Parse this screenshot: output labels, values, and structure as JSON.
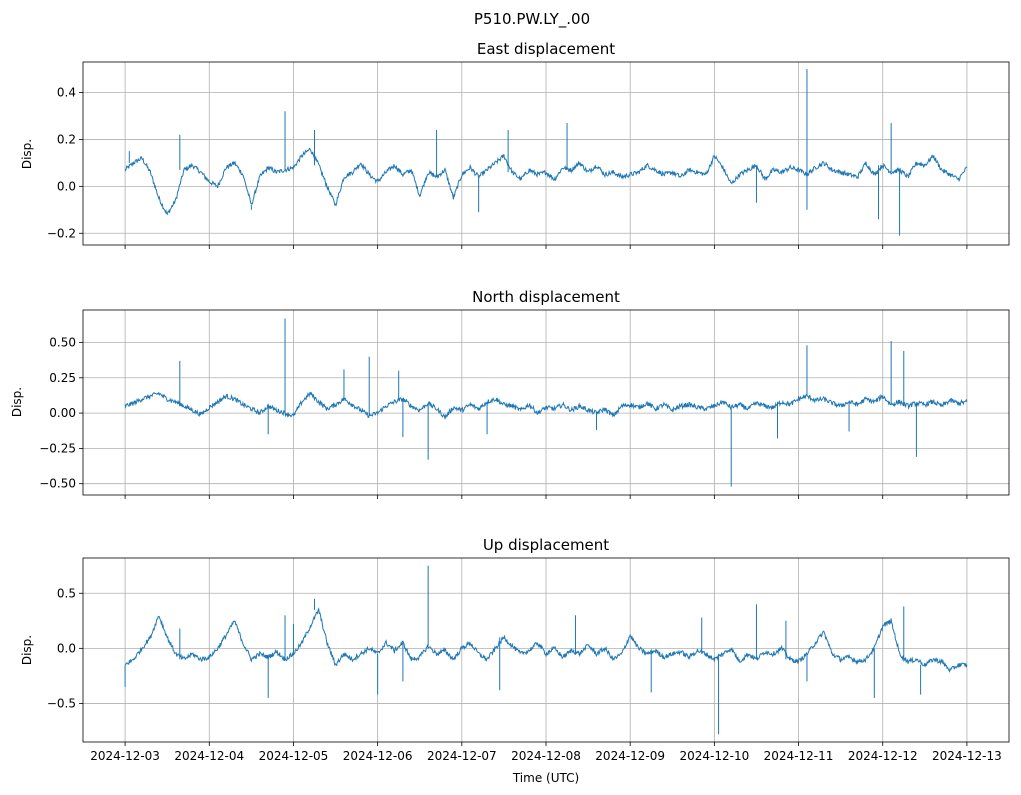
{
  "suptitle": "P510.PW.LY_.00",
  "chart_data": [
    {
      "type": "line",
      "title": "East displacement",
      "xlabel": "",
      "ylabel": "Disp.",
      "xlim": [
        -0.5,
        10.5
      ],
      "ylim": [
        -0.25,
        0.53
      ],
      "yticks": [
        -0.2,
        0.0,
        0.2,
        0.4
      ],
      "ytick_labels": [
        "−0.2",
        "0.0",
        "0.2",
        "0.4"
      ],
      "grid": true,
      "series": [
        {
          "name": "East",
          "color": "#1f77b4",
          "x": [
            0,
            0.1,
            0.2,
            0.3,
            0.4,
            0.5,
            0.6,
            0.7,
            0.8,
            0.9,
            1.0,
            1.1,
            1.2,
            1.3,
            1.4,
            1.5,
            1.6,
            1.7,
            1.8,
            1.9,
            2.0,
            2.1,
            2.2,
            2.3,
            2.4,
            2.5,
            2.6,
            2.7,
            2.8,
            2.9,
            3.0,
            3.1,
            3.2,
            3.3,
            3.4,
            3.5,
            3.6,
            3.7,
            3.8,
            3.9,
            4.0,
            4.1,
            4.2,
            4.3,
            4.4,
            4.5,
            4.6,
            4.7,
            4.8,
            4.9,
            5.0,
            5.1,
            5.2,
            5.3,
            5.4,
            5.5,
            5.6,
            5.7,
            5.8,
            5.9,
            6.0,
            6.1,
            6.2,
            6.3,
            6.4,
            6.5,
            6.6,
            6.7,
            6.8,
            6.9,
            7.0,
            7.1,
            7.2,
            7.3,
            7.4,
            7.5,
            7.6,
            7.7,
            7.8,
            7.9,
            8.0,
            8.1,
            8.2,
            8.3,
            8.4,
            8.5,
            8.6,
            8.7,
            8.8,
            8.9,
            9.0,
            9.1,
            9.2,
            9.3,
            9.4,
            9.5,
            9.6,
            9.7,
            9.8,
            9.9,
            10.0
          ],
          "y": [
            0.07,
            0.1,
            0.12,
            0.06,
            -0.05,
            -0.12,
            -0.06,
            0.07,
            0.09,
            0.06,
            0.02,
            0.0,
            0.08,
            0.1,
            0.05,
            -0.08,
            0.04,
            0.08,
            0.06,
            0.07,
            0.08,
            0.13,
            0.16,
            0.09,
            0.0,
            -0.08,
            0.04,
            0.06,
            0.1,
            0.05,
            0.02,
            0.06,
            0.09,
            0.05,
            0.07,
            -0.04,
            0.06,
            0.04,
            0.07,
            -0.05,
            0.05,
            0.08,
            0.04,
            0.07,
            0.1,
            0.13,
            0.06,
            0.03,
            0.07,
            0.05,
            0.06,
            0.03,
            0.08,
            0.07,
            0.1,
            0.06,
            0.09,
            0.05,
            0.06,
            0.04,
            0.05,
            0.06,
            0.09,
            0.07,
            0.05,
            0.06,
            0.04,
            0.07,
            0.06,
            0.05,
            0.13,
            0.08,
            0.01,
            0.05,
            0.07,
            0.09,
            0.03,
            0.07,
            0.06,
            0.08,
            0.07,
            0.05,
            0.08,
            0.1,
            0.07,
            0.06,
            0.05,
            0.04,
            0.1,
            0.05,
            0.09,
            0.06,
            0.07,
            0.04,
            0.1,
            0.09,
            0.13,
            0.07,
            0.05,
            0.03,
            0.08
          ],
          "spikes": [
            [
              0.05,
              0.15
            ],
            [
              0.65,
              0.22
            ],
            [
              1.9,
              0.32
            ],
            [
              2.25,
              0.24
            ],
            [
              3.7,
              0.24
            ],
            [
              4.55,
              0.24
            ],
            [
              5.25,
              0.27
            ],
            [
              7.5,
              -0.07
            ],
            [
              8.1,
              0.5
            ],
            [
              8.1,
              -0.1
            ],
            [
              9.1,
              0.27
            ],
            [
              8.95,
              -0.14
            ],
            [
              9.2,
              -0.21
            ],
            [
              4.2,
              -0.11
            ],
            [
              1.5,
              -0.1
            ]
          ]
        }
      ]
    },
    {
      "type": "line",
      "title": "North displacement",
      "xlabel": "",
      "ylabel": "Disp.",
      "xlim": [
        -0.5,
        10.5
      ],
      "ylim": [
        -0.58,
        0.73
      ],
      "yticks": [
        -0.5,
        -0.25,
        0.0,
        0.25,
        0.5
      ],
      "ytick_labels": [
        "−0.50",
        "−0.25",
        "0.00",
        "0.25",
        "0.50"
      ],
      "grid": true,
      "series": [
        {
          "name": "North",
          "color": "#1f77b4",
          "x": [
            0,
            0.1,
            0.2,
            0.3,
            0.4,
            0.5,
            0.6,
            0.7,
            0.8,
            0.9,
            1.0,
            1.1,
            1.2,
            1.3,
            1.4,
            1.5,
            1.6,
            1.7,
            1.8,
            1.9,
            2.0,
            2.1,
            2.2,
            2.3,
            2.4,
            2.5,
            2.6,
            2.7,
            2.8,
            2.9,
            3.0,
            3.1,
            3.2,
            3.3,
            3.4,
            3.5,
            3.6,
            3.7,
            3.8,
            3.9,
            4.0,
            4.1,
            4.2,
            4.3,
            4.4,
            4.5,
            4.6,
            4.7,
            4.8,
            4.9,
            5.0,
            5.1,
            5.2,
            5.3,
            5.4,
            5.5,
            5.6,
            5.7,
            5.8,
            5.9,
            6.0,
            6.1,
            6.2,
            6.3,
            6.4,
            6.5,
            6.6,
            6.7,
            6.8,
            6.9,
            7.0,
            7.1,
            7.2,
            7.3,
            7.4,
            7.5,
            7.6,
            7.7,
            7.8,
            7.9,
            8.0,
            8.1,
            8.2,
            8.3,
            8.4,
            8.5,
            8.6,
            8.7,
            8.8,
            8.9,
            9.0,
            9.1,
            9.2,
            9.3,
            9.4,
            9.5,
            9.6,
            9.7,
            9.8,
            9.9,
            10.0
          ],
          "y": [
            0.05,
            0.07,
            0.1,
            0.12,
            0.14,
            0.1,
            0.08,
            0.05,
            0.02,
            -0.01,
            0.04,
            0.08,
            0.12,
            0.1,
            0.06,
            0.03,
            0.0,
            0.05,
            0.02,
            0.0,
            -0.02,
            0.08,
            0.14,
            0.08,
            0.03,
            0.06,
            0.1,
            0.06,
            0.02,
            -0.02,
            0.0,
            0.05,
            0.08,
            0.1,
            0.05,
            0.02,
            0.07,
            0.03,
            -0.03,
            0.04,
            0.02,
            0.06,
            0.03,
            0.08,
            0.1,
            0.06,
            0.05,
            0.02,
            0.06,
            0.0,
            0.04,
            0.03,
            0.06,
            0.02,
            0.05,
            0.02,
            0.0,
            0.03,
            -0.02,
            0.05,
            0.06,
            0.04,
            0.07,
            0.03,
            0.06,
            0.02,
            0.05,
            0.06,
            0.04,
            0.03,
            0.05,
            0.08,
            0.04,
            0.06,
            0.03,
            0.07,
            0.05,
            0.04,
            0.08,
            0.06,
            0.1,
            0.12,
            0.09,
            0.1,
            0.07,
            0.05,
            0.08,
            0.06,
            0.1,
            0.08,
            0.12,
            0.06,
            0.08,
            0.05,
            0.07,
            0.06,
            0.08,
            0.05,
            0.09,
            0.07,
            0.08
          ],
          "spikes": [
            [
              0.65,
              0.37
            ],
            [
              1.9,
              0.67
            ],
            [
              1.7,
              -0.15
            ],
            [
              2.6,
              0.31
            ],
            [
              2.9,
              0.4
            ],
            [
              3.25,
              0.3
            ],
            [
              3.6,
              -0.33
            ],
            [
              3.3,
              -0.17
            ],
            [
              4.3,
              -0.15
            ],
            [
              7.2,
              -0.52
            ],
            [
              7.75,
              -0.18
            ],
            [
              8.1,
              0.48
            ],
            [
              8.6,
              -0.13
            ],
            [
              9.1,
              0.51
            ],
            [
              9.25,
              0.44
            ],
            [
              9.4,
              -0.31
            ],
            [
              5.6,
              -0.12
            ]
          ]
        }
      ]
    },
    {
      "type": "line",
      "title": "Up displacement",
      "xlabel": "Time (UTC)",
      "ylabel": "Disp.",
      "xlim": [
        -0.5,
        10.5
      ],
      "ylim": [
        -0.85,
        0.82
      ],
      "yticks": [
        -0.5,
        0.0,
        0.5
      ],
      "ytick_labels": [
        "−0.5",
        "0.0",
        "0.5"
      ],
      "xtick_labels": [
        "2024-12-03",
        "2024-12-04",
        "2024-12-05",
        "2024-12-06",
        "2024-12-07",
        "2024-12-08",
        "2024-12-09",
        "2024-12-10",
        "2024-12-11",
        "2024-12-12",
        "2024-12-13"
      ],
      "grid": true,
      "series": [
        {
          "name": "Up",
          "color": "#1f77b4",
          "x": [
            0,
            0.1,
            0.2,
            0.3,
            0.4,
            0.5,
            0.6,
            0.7,
            0.8,
            0.9,
            1.0,
            1.1,
            1.2,
            1.3,
            1.4,
            1.5,
            1.6,
            1.7,
            1.8,
            1.9,
            2.0,
            2.1,
            2.2,
            2.3,
            2.4,
            2.5,
            2.6,
            2.7,
            2.8,
            2.9,
            3.0,
            3.1,
            3.2,
            3.3,
            3.4,
            3.5,
            3.6,
            3.7,
            3.8,
            3.9,
            4.0,
            4.1,
            4.2,
            4.3,
            4.4,
            4.5,
            4.6,
            4.7,
            4.8,
            4.9,
            5.0,
            5.1,
            5.2,
            5.3,
            5.4,
            5.5,
            5.6,
            5.7,
            5.8,
            5.9,
            6.0,
            6.1,
            6.2,
            6.3,
            6.4,
            6.5,
            6.6,
            6.7,
            6.8,
            6.9,
            7.0,
            7.1,
            7.2,
            7.3,
            7.4,
            7.5,
            7.6,
            7.7,
            7.8,
            7.9,
            8.0,
            8.1,
            8.2,
            8.3,
            8.4,
            8.5,
            8.6,
            8.7,
            8.8,
            8.9,
            9.0,
            9.1,
            9.2,
            9.3,
            9.4,
            9.5,
            9.6,
            9.7,
            9.8,
            9.9,
            10.0
          ],
          "y": [
            -0.15,
            -0.1,
            0.0,
            0.1,
            0.3,
            0.1,
            -0.05,
            -0.1,
            -0.05,
            -0.1,
            -0.08,
            0.0,
            0.12,
            0.25,
            0.05,
            -0.1,
            -0.05,
            -0.08,
            -0.03,
            -0.1,
            -0.05,
            0.05,
            0.2,
            0.35,
            0.05,
            -0.15,
            -0.05,
            -0.1,
            -0.05,
            0.0,
            -0.05,
            0.05,
            -0.02,
            0.05,
            -0.1,
            -0.08,
            0.02,
            -0.05,
            -0.02,
            -0.1,
            0.0,
            0.05,
            -0.05,
            -0.1,
            0.0,
            0.1,
            0.02,
            -0.05,
            -0.02,
            0.05,
            -0.05,
            0.0,
            -0.08,
            -0.02,
            -0.05,
            0.03,
            -0.05,
            0.0,
            -0.1,
            -0.05,
            0.12,
            0.0,
            -0.05,
            -0.02,
            -0.08,
            -0.05,
            -0.03,
            -0.08,
            -0.02,
            -0.05,
            -0.1,
            -0.05,
            0.0,
            -0.12,
            -0.05,
            -0.1,
            -0.03,
            -0.05,
            0.0,
            -0.1,
            -0.12,
            -0.05,
            0.05,
            0.15,
            -0.05,
            -0.1,
            -0.08,
            -0.12,
            -0.1,
            0.0,
            0.2,
            0.25,
            -0.05,
            -0.12,
            -0.1,
            -0.15,
            -0.1,
            -0.12,
            -0.2,
            -0.15,
            -0.15
          ],
          "spikes": [
            [
              0.0,
              -0.35
            ],
            [
              0.65,
              0.18
            ],
            [
              1.7,
              -0.45
            ],
            [
              1.9,
              0.3
            ],
            [
              2.0,
              0.22
            ],
            [
              2.25,
              0.45
            ],
            [
              3.0,
              -0.42
            ],
            [
              3.6,
              0.75
            ],
            [
              3.3,
              -0.3
            ],
            [
              4.45,
              -0.38
            ],
            [
              6.25,
              -0.4
            ],
            [
              7.05,
              -0.78
            ],
            [
              7.5,
              0.4
            ],
            [
              7.85,
              0.25
            ],
            [
              8.1,
              -0.3
            ],
            [
              8.9,
              -0.45
            ],
            [
              9.25,
              0.38
            ],
            [
              9.45,
              -0.42
            ],
            [
              5.35,
              0.3
            ],
            [
              6.85,
              0.28
            ]
          ]
        }
      ]
    }
  ]
}
